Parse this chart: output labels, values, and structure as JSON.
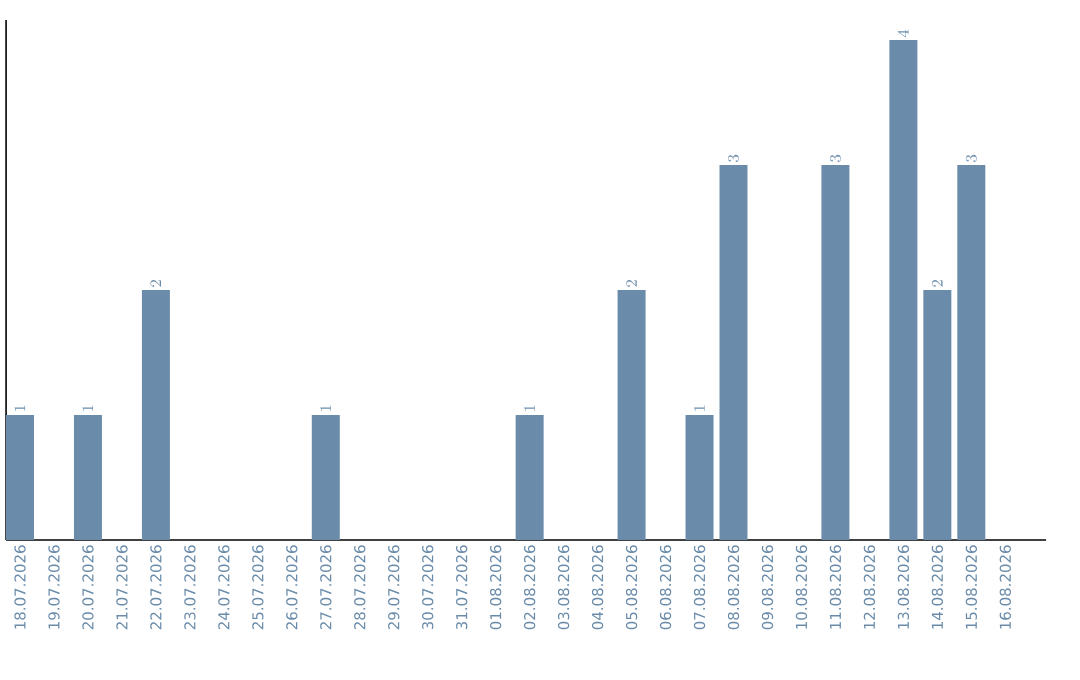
{
  "chart_data": {
    "type": "bar",
    "categories": [
      "18.07.2026",
      "19.07.2026",
      "20.07.2026",
      "21.07.2026",
      "22.07.2026",
      "23.07.2026",
      "24.07.2026",
      "25.07.2026",
      "26.07.2026",
      "27.07.2026",
      "28.07.2026",
      "29.07.2026",
      "30.07.2026",
      "31.07.2026",
      "01.08.2026",
      "02.08.2026",
      "03.08.2026",
      "04.08.2026",
      "05.08.2026",
      "06.08.2026",
      "07.08.2026",
      "08.08.2026",
      "09.08.2026",
      "10.08.2026",
      "11.08.2026",
      "12.08.2026",
      "13.08.2026",
      "14.08.2026",
      "15.08.2026",
      "16.08.2026"
    ],
    "values": [
      1,
      null,
      1,
      null,
      2,
      null,
      null,
      null,
      null,
      1,
      null,
      null,
      null,
      null,
      null,
      1,
      null,
      null,
      2,
      null,
      1,
      3,
      null,
      null,
      3,
      null,
      4,
      2,
      3,
      null
    ],
    "color": "#6a8caa",
    "data_labels": true
  }
}
